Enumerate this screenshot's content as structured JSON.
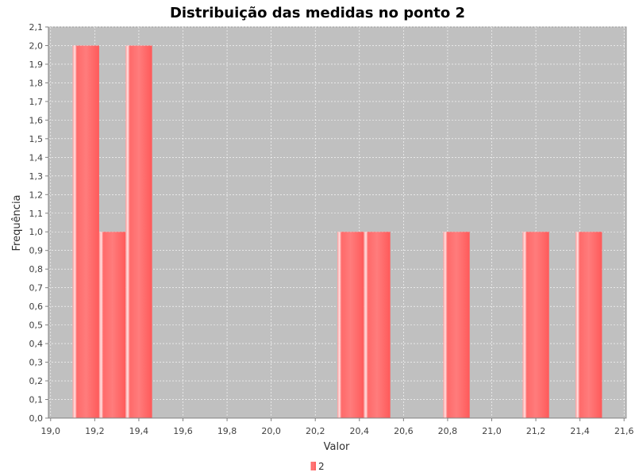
{
  "chart_data": {
    "type": "bar",
    "title": "Distribuição das medidas no ponto 2",
    "xlabel": "Valor",
    "ylabel": "Frequência",
    "xlim": [
      18.99,
      21.61
    ],
    "ylim": [
      0,
      2.1
    ],
    "grid": true,
    "legend_position": "bottom-center",
    "x_ticks": [
      "19,0",
      "19,2",
      "19,4",
      "19,6",
      "19,8",
      "20,0",
      "20,2",
      "20,4",
      "20,6",
      "20,8",
      "21,0",
      "21,2",
      "21,4",
      "21,6"
    ],
    "x_tick_values": [
      19.0,
      19.2,
      19.4,
      19.6,
      19.8,
      20.0,
      20.2,
      20.4,
      20.6,
      20.8,
      21.0,
      21.2,
      21.4,
      21.6
    ],
    "y_ticks": [
      "0,0",
      "0,1",
      "0,2",
      "0,3",
      "0,4",
      "0,5",
      "0,6",
      "0,7",
      "0,8",
      "0,9",
      "1,0",
      "1,1",
      "1,2",
      "1,3",
      "1,4",
      "1,5",
      "1,6",
      "1,7",
      "1,8",
      "1,9",
      "2,0",
      "2,1"
    ],
    "y_tick_values": [
      0,
      0.1,
      0.2,
      0.3,
      0.4,
      0.5,
      0.6,
      0.7,
      0.8,
      0.9,
      1.0,
      1.1,
      1.2,
      1.3,
      1.4,
      1.5,
      1.6,
      1.7,
      1.8,
      1.9,
      2.0,
      2.1
    ],
    "series": [
      {
        "name": "2",
        "color": "#ff5555",
        "bins": [
          {
            "start": 19.1,
            "end": 19.22,
            "value": 2
          },
          {
            "start": 19.22,
            "end": 19.34,
            "value": 1
          },
          {
            "start": 19.34,
            "end": 19.46,
            "value": 2
          },
          {
            "start": 20.3,
            "end": 20.42,
            "value": 1
          },
          {
            "start": 20.42,
            "end": 20.54,
            "value": 1
          },
          {
            "start": 20.78,
            "end": 20.9,
            "value": 1
          },
          {
            "start": 21.14,
            "end": 21.26,
            "value": 1
          },
          {
            "start": 21.38,
            "end": 21.5,
            "value": 1
          }
        ]
      }
    ]
  }
}
